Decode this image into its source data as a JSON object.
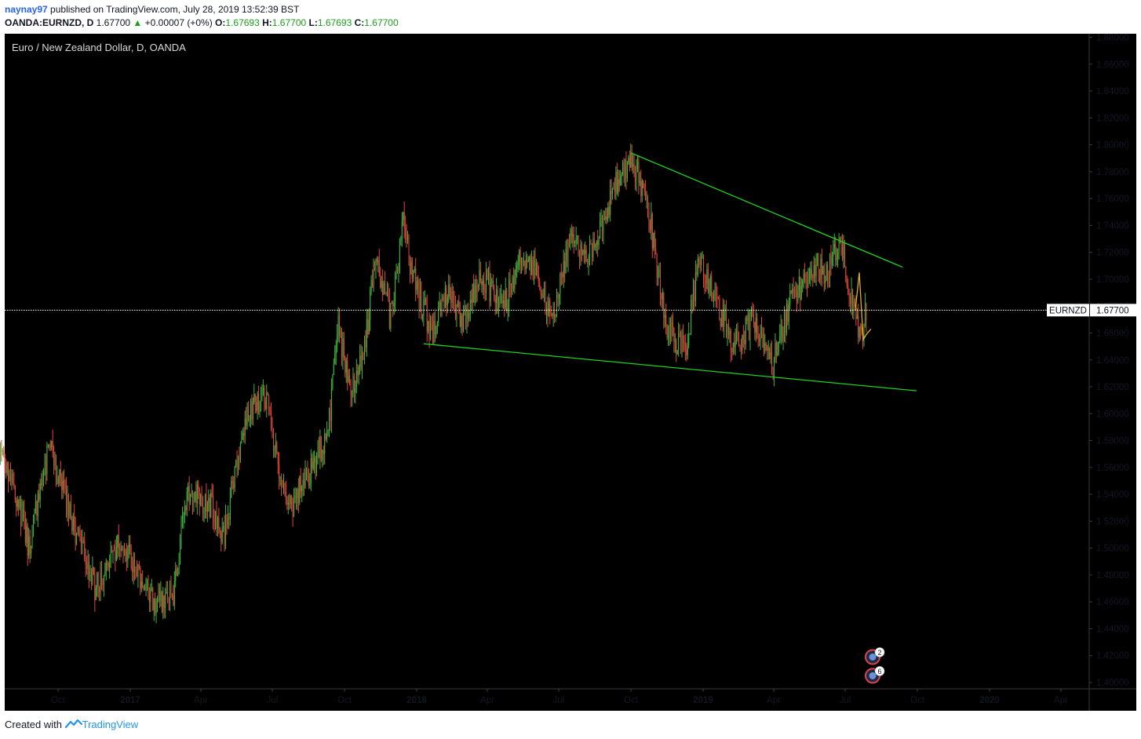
{
  "header": {
    "username": "naynay97",
    "published_text": "published on TradingView.com, July 28, 2019 13:52:39 BST",
    "symbol": "OANDA:EURNZD, D",
    "last": "1.67700",
    "change_arrow": "▲",
    "change": "+0.00007 (+0%)",
    "open_label": "O:",
    "open": "1.67693",
    "high_label": "H:",
    "high": "1.67700",
    "low_label": "L:",
    "low": "1.67693",
    "close_label": "C:",
    "close": "1.67700"
  },
  "footer": {
    "created_with": "Created with",
    "brand": "TradingView",
    "logo_icon": "tradingview-logo-icon"
  },
  "colors": {
    "background": "#000000",
    "up": "#26a69a",
    "up_candle": "#3fb33f",
    "down_candle": "#e0463d",
    "trendline": "#1fd11f",
    "frame": "#3a3a3a",
    "price_line": "#ffffff",
    "label_bg": "#ffffff",
    "recent": "#e0b020"
  },
  "chart_data": {
    "type": "candlestick",
    "title": "Euro / New Zealand Dollar, D, OANDA",
    "price_label": "EURNZD",
    "price_label_value": "1.67700",
    "current_price": 1.677,
    "ylim": [
      1.395,
      1.89
    ],
    "y_ticks": [
      "1.88000",
      "1.86000",
      "1.84000",
      "1.82000",
      "1.80000",
      "1.78000",
      "1.76000",
      "1.74000",
      "1.72000",
      "1.70000",
      "1.68000",
      "1.66000",
      "1.64000",
      "1.62000",
      "1.60000",
      "1.58000",
      "1.56000",
      "1.54000",
      "1.52000",
      "1.50000",
      "1.48000",
      "1.46000",
      "1.44000",
      "1.42000",
      "1.40000"
    ],
    "x_ticks": [
      {
        "label": "Oct",
        "t": "2016-10",
        "bold": false
      },
      {
        "label": "2017",
        "t": "2017-01",
        "bold": true
      },
      {
        "label": "Apr",
        "t": "2017-04",
        "bold": false
      },
      {
        "label": "Jul",
        "t": "2017-07",
        "bold": false
      },
      {
        "label": "Oct",
        "t": "2017-10",
        "bold": false
      },
      {
        "label": "2018",
        "t": "2018-01",
        "bold": true
      },
      {
        "label": "Apr",
        "t": "2018-04",
        "bold": false
      },
      {
        "label": "Jul",
        "t": "2018-07",
        "bold": false
      },
      {
        "label": "Oct",
        "t": "2018-10",
        "bold": false
      },
      {
        "label": "2019",
        "t": "2019-01",
        "bold": true
      },
      {
        "label": "Apr",
        "t": "2019-04",
        "bold": false
      },
      {
        "label": "Jul",
        "t": "2019-07",
        "bold": false
      },
      {
        "label": "Oct",
        "t": "2019-10",
        "bold": false
      },
      {
        "label": "2020",
        "t": "2020-01",
        "bold": true
      },
      {
        "label": "Apr",
        "t": "2020-04",
        "bold": false
      }
    ],
    "price_path": [
      {
        "t": "2016-07-18",
        "p": 1.575
      },
      {
        "t": "2016-08-05",
        "p": 1.55
      },
      {
        "t": "2016-08-25",
        "p": 1.5
      },
      {
        "t": "2016-09-20",
        "p": 1.575
      },
      {
        "t": "2016-10-18",
        "p": 1.52
      },
      {
        "t": "2016-11-18",
        "p": 1.47
      },
      {
        "t": "2016-12-20",
        "p": 1.51
      },
      {
        "t": "2017-01-25",
        "p": 1.46
      },
      {
        "t": "2017-02-25",
        "p": 1.465
      },
      {
        "t": "2017-03-15",
        "p": 1.545
      },
      {
        "t": "2017-04-15",
        "p": 1.53
      },
      {
        "t": "2017-05-01",
        "p": 1.51
      },
      {
        "t": "2017-05-28",
        "p": 1.6
      },
      {
        "t": "2017-06-22",
        "p": 1.615
      },
      {
        "t": "2017-07-05",
        "p": 1.57
      },
      {
        "t": "2017-07-25",
        "p": 1.53
      },
      {
        "t": "2017-08-20",
        "p": 1.56
      },
      {
        "t": "2017-09-10",
        "p": 1.585
      },
      {
        "t": "2017-09-22",
        "p": 1.665
      },
      {
        "t": "2017-10-10",
        "p": 1.62
      },
      {
        "t": "2017-10-25",
        "p": 1.64
      },
      {
        "t": "2017-11-10",
        "p": 1.72
      },
      {
        "t": "2017-11-28",
        "p": 1.67
      },
      {
        "t": "2017-12-15",
        "p": 1.74
      },
      {
        "t": "2017-12-30",
        "p": 1.695
      },
      {
        "t": "2018-01-20",
        "p": 1.66
      },
      {
        "t": "2018-02-10",
        "p": 1.69
      },
      {
        "t": "2018-03-01",
        "p": 1.67
      },
      {
        "t": "2018-03-25",
        "p": 1.705
      },
      {
        "t": "2018-04-20",
        "p": 1.675
      },
      {
        "t": "2018-05-15",
        "p": 1.72
      },
      {
        "t": "2018-06-05",
        "p": 1.705
      },
      {
        "t": "2018-06-22",
        "p": 1.665
      },
      {
        "t": "2018-07-15",
        "p": 1.73
      },
      {
        "t": "2018-08-08",
        "p": 1.715
      },
      {
        "t": "2018-08-28",
        "p": 1.745
      },
      {
        "t": "2018-09-15",
        "p": 1.775
      },
      {
        "t": "2018-10-04",
        "p": 1.788
      },
      {
        "t": "2018-10-25",
        "p": 1.745
      },
      {
        "t": "2018-11-15",
        "p": 1.665
      },
      {
        "t": "2018-12-10",
        "p": 1.645
      },
      {
        "t": "2018-12-26",
        "p": 1.715
      },
      {
        "t": "2019-01-20",
        "p": 1.68
      },
      {
        "t": "2019-02-10",
        "p": 1.65
      },
      {
        "t": "2019-03-05",
        "p": 1.67
      },
      {
        "t": "2019-03-30",
        "p": 1.635
      },
      {
        "t": "2019-04-20",
        "p": 1.68
      },
      {
        "t": "2019-05-20",
        "p": 1.71
      },
      {
        "t": "2019-06-10",
        "p": 1.705
      },
      {
        "t": "2019-06-25",
        "p": 1.728
      },
      {
        "t": "2019-07-08",
        "p": 1.69
      },
      {
        "t": "2019-07-22",
        "p": 1.655
      },
      {
        "t": "2019-07-28",
        "p": 1.677
      }
    ],
    "recent_path": [
      {
        "t": "2019-07-14",
        "p": 1.677
      },
      {
        "t": "2019-07-19",
        "p": 1.705
      },
      {
        "t": "2019-07-24",
        "p": 1.655
      },
      {
        "t": "2019-07-28",
        "p": 1.659
      },
      {
        "t": "2019-08-03",
        "p": 1.663
      }
    ],
    "trendlines": [
      {
        "name": "resistance",
        "from": {
          "t": "2018-10-01",
          "p": 1.794
        },
        "to": {
          "t": "2019-09-12",
          "p": 1.709
        }
      },
      {
        "name": "support",
        "from": {
          "t": "2018-01-10",
          "p": 1.652
        },
        "to": {
          "t": "2019-09-30",
          "p": 1.617
        }
      }
    ],
    "event_badges": [
      {
        "t": "2019-08-05",
        "p": 1.419,
        "count": "2",
        "icon": "calendar-event-icon"
      },
      {
        "t": "2019-08-05",
        "p": 1.405,
        "count": "6",
        "icon": "flag-event-icon"
      }
    ]
  }
}
